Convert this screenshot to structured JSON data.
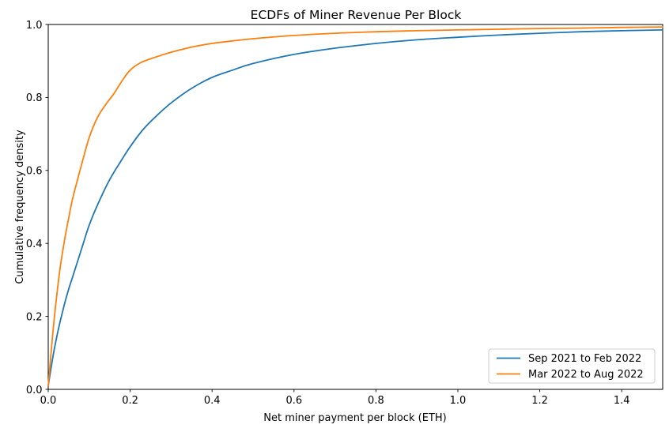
{
  "chart_data": {
    "type": "line",
    "title": "ECDFs of Miner Revenue Per Block",
    "xlabel": "Net miner payment per block (ETH)",
    "ylabel": "Cumulative frequency density",
    "xlim": [
      0.0,
      1.5
    ],
    "ylim": [
      0.0,
      1.0
    ],
    "grid": false,
    "legend_position": "lower right",
    "xticks": {
      "values": [
        0.0,
        0.2,
        0.4,
        0.6,
        0.8,
        1.0,
        1.2,
        1.4
      ],
      "labels": [
        "0.0",
        "0.2",
        "0.4",
        "0.6",
        "0.8",
        "1.0",
        "1.2",
        "1.4"
      ]
    },
    "yticks": {
      "values": [
        0.0,
        0.2,
        0.4,
        0.6,
        0.8,
        1.0
      ],
      "labels": [
        "0.0",
        "0.2",
        "0.4",
        "0.6",
        "0.8",
        "1.0"
      ]
    },
    "series": [
      {
        "name": "Sep 2021 to Feb 2022",
        "color": "#1f77b4",
        "x": [
          0,
          0.01,
          0.02,
          0.03,
          0.04,
          0.05,
          0.06,
          0.08,
          0.1,
          0.12,
          0.15,
          0.18,
          0.2,
          0.23,
          0.26,
          0.3,
          0.35,
          0.4,
          0.45,
          0.5,
          0.6,
          0.7,
          0.8,
          0.9,
          1.0,
          1.1,
          1.2,
          1.3,
          1.4,
          1.5
        ],
        "y": [
          0.01,
          0.08,
          0.14,
          0.19,
          0.235,
          0.275,
          0.31,
          0.38,
          0.45,
          0.505,
          0.575,
          0.63,
          0.665,
          0.71,
          0.745,
          0.785,
          0.825,
          0.855,
          0.875,
          0.893,
          0.918,
          0.935,
          0.948,
          0.958,
          0.965,
          0.971,
          0.976,
          0.98,
          0.983,
          0.985
        ]
      },
      {
        "name": "Mar 2022 to Aug 2022",
        "color": "#ff7f0e",
        "x": [
          0,
          0.01,
          0.02,
          0.03,
          0.04,
          0.05,
          0.06,
          0.08,
          0.1,
          0.12,
          0.14,
          0.16,
          0.18,
          0.2,
          0.225,
          0.25,
          0.28,
          0.3,
          0.35,
          0.4,
          0.45,
          0.5,
          0.6,
          0.7,
          0.8,
          0.9,
          1.0,
          1.1,
          1.2,
          1.3,
          1.4,
          1.5
        ],
        "y": [
          0.01,
          0.14,
          0.25,
          0.34,
          0.41,
          0.47,
          0.525,
          0.61,
          0.69,
          0.745,
          0.78,
          0.81,
          0.845,
          0.875,
          0.895,
          0.906,
          0.917,
          0.924,
          0.938,
          0.948,
          0.955,
          0.961,
          0.97,
          0.976,
          0.98,
          0.983,
          0.985,
          0.987,
          0.989,
          0.99,
          0.992,
          0.993
        ]
      }
    ],
    "axes_color": "#000000",
    "background_color": "#ffffff"
  }
}
